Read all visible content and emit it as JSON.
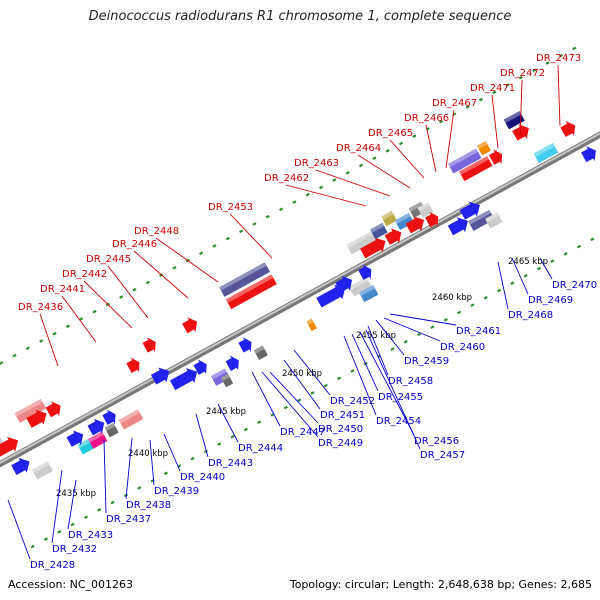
{
  "title": "Deinococcus radiodurans R1 chromosome 1, complete sequence",
  "footer": {
    "accession": "Accession: NC_001263",
    "summary": "Topology: circular; Length: 2,648,638 bp; Genes: 2,685"
  },
  "colors": {
    "backbone": "#999999",
    "label_up": "#cc0000",
    "label_down": "#0000cc",
    "tick": "#2e8b2e"
  },
  "scale_labels": [
    "2435 kbp",
    "2440 kbp",
    "2445 kbp",
    "2450 kbp",
    "2455 kbp",
    "2460 kbp",
    "2465 kbp"
  ],
  "labels_up": [
    "DR_2436",
    "DR_2441",
    "DR_2442",
    "DR_2445",
    "DR_2446",
    "DR_2448",
    "DR_2453",
    "DR_2462",
    "DR_2463",
    "DR_2464",
    "DR_2465",
    "DR_2466",
    "DR_2467",
    "DR_2471",
    "DR_2472",
    "DR_2473"
  ],
  "labels_down": [
    "DR_2428",
    "DR_2432",
    "DR_2433",
    "DR_2437",
    "DR_2438",
    "DR_2439",
    "DR_2440",
    "DR_2443",
    "DR_2444",
    "DR_2447",
    "DR_2449",
    "DR_2450",
    "DR_2451",
    "DR_2452",
    "DR_2454",
    "DR_2455",
    "DR_2456",
    "DR_2457",
    "DR_2458",
    "DR_2459",
    "DR_2460",
    "DR_2461",
    "DR_2468",
    "DR_2469",
    "DR_2470"
  ]
}
